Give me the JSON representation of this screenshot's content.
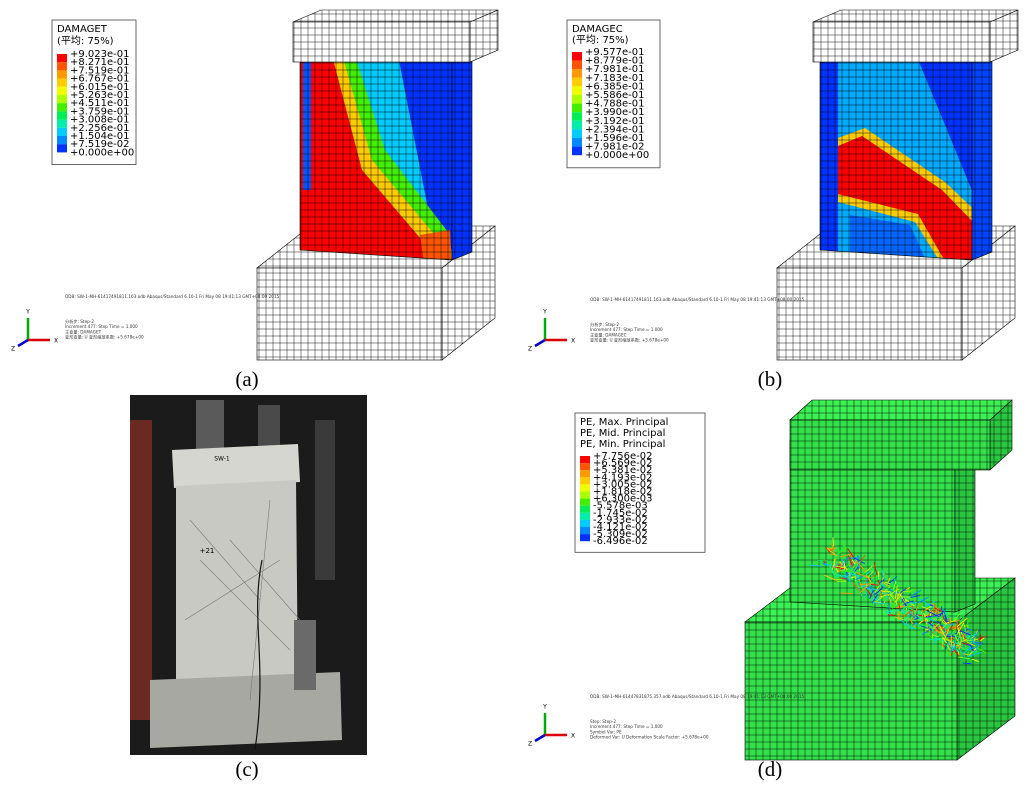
{
  "panels": [
    {
      "label": "(a)",
      "legend": {
        "title": [
          "DAMAGET",
          "(平均: 75%)"
        ],
        "values": [
          "+9.023e-01",
          "+8.271e-01",
          "+7.519e-01",
          "+6.767e-01",
          "+6.015e-01",
          "+5.263e-01",
          "+4.511e-01",
          "+3.759e-01",
          "+3.008e-01",
          "+2.256e-01",
          "+1.504e-01",
          "+7.519e-02",
          "+0.000e+00"
        ]
      },
      "footer": {
        "odb": "ODB: SW-1-MH-61417491811.163.odb   Abaqus/Standard 6.10-1   Fri May 08 19:41:13 GMT+08:00 2015",
        "lines": [
          "分析步: Step-2",
          "Increment    477: Step Time =    1.000",
          "主变量: DAMAGET",
          "变形变量: U   变形缩放系数: +5.678e+00"
        ]
      },
      "triad": [
        "Y",
        "Z",
        "X"
      ]
    },
    {
      "label": "(b)",
      "legend": {
        "title": [
          "DAMAGEC",
          "(平均: 75%)"
        ],
        "values": [
          "+9.577e-01",
          "+8.779e-01",
          "+7.981e-01",
          "+7.183e-01",
          "+6.385e-01",
          "+5.586e-01",
          "+4.788e-01",
          "+3.990e-01",
          "+3.192e-01",
          "+2.394e-01",
          "+1.596e-01",
          "+7.981e-02",
          "+0.000e+00"
        ]
      },
      "footer": {
        "odb": "ODB: SW-1-MH-61417491811.163.odb   Abaqus/Standard 6.10-1   Fri May 08 19:41:13 GMT+08:00 2015",
        "lines": [
          "分析步: Step-2",
          "Increment    477: Step Time =    1.000",
          "主变量: DAMAGEC",
          "变形变量: U   变形缩放系数: +5.678e+00"
        ]
      },
      "triad": [
        "Y",
        "Z",
        "X"
      ]
    },
    {
      "label": "(c)",
      "photo_texts": [
        "SW-1",
        "+21"
      ]
    },
    {
      "label": "(d)",
      "legend": {
        "title": [
          "PE, Max. Principal",
          "PE, Mid. Principal",
          "PE, Min. Principal"
        ],
        "values": [
          "+7.756e-02",
          "+6.569e-02",
          "+5.381e-02",
          "+4.193e-02",
          "+3.005e-02",
          "+1.818e-02",
          "+6.300e-03",
          "-5.578e-03",
          "-1.745e-02",
          "-2.933e-02",
          "-4.121e-02",
          "-5.309e-02",
          "-6.496e-02"
        ]
      },
      "footer": {
        "odb": "ODB: SW-1-MH-61447831875.357.odb   Abaqus/Standard 6.10-1   Fri May 08 19:41:13 GMT+08:00 2015",
        "lines": [
          "Step: Step-2",
          "Increment    477: Step Time =    1.000",
          "Symbol Var: PE",
          "Deformed Var: U   Deformation Scale Factor: +5.678e+00"
        ]
      },
      "triad": [
        "Y",
        "Z",
        "X"
      ]
    }
  ]
}
